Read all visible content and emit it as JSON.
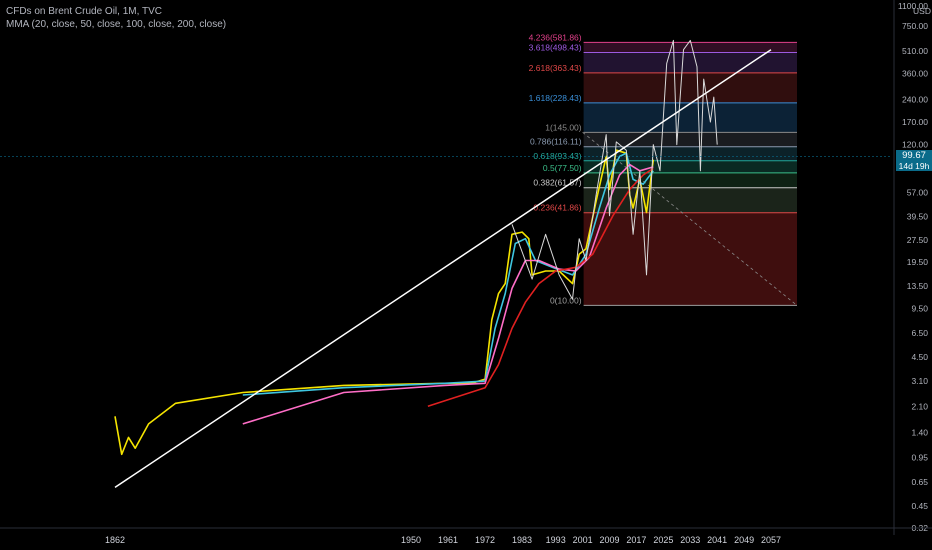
{
  "header": {
    "symbol_line": "CFDs on Brent Crude Oil, 1M, TVC",
    "indicator_line": "MMA (20, close, 50, close, 100, close, 200, close)"
  },
  "axis": {
    "currency": "USD",
    "y_ticks": [
      "1100.00",
      "750.00",
      "510.00",
      "360.00",
      "240.00",
      "170.00",
      "120.00",
      "57.00",
      "39.50",
      "27.50",
      "19.50",
      "13.50",
      "9.50",
      "6.50",
      "4.50",
      "3.10",
      "2.10",
      "1.40",
      "0.95",
      "0.65",
      "0.45",
      "0.32"
    ],
    "x_ticks": [
      "1862",
      "1950",
      "1961",
      "1972",
      "1983",
      "1993",
      "2001",
      "2009",
      "2017",
      "2025",
      "2033",
      "2041",
      "2049",
      "2057"
    ]
  },
  "last_price": {
    "value": "99.67",
    "countdown": "14d 19h",
    "color": "#0a6b8a"
  },
  "chart_data": {
    "type": "line",
    "title": "CFDs on Brent Crude Oil, 1M, TVC",
    "y_scale": "log",
    "ylim": [
      0.32,
      1100
    ],
    "x_ticks": [
      "1862",
      "1950",
      "1961",
      "1972",
      "1983",
      "1993",
      "2001",
      "2009",
      "2017",
      "2025",
      "2033",
      "2041",
      "2049",
      "2057"
    ],
    "fib_levels": [
      {
        "label": "0(10.00)",
        "ratio": 0,
        "price": 10.0,
        "line_color": "#9e9e9e",
        "fill": "#8b1f1f"
      },
      {
        "label": "0.236(41.86)",
        "ratio": 0.236,
        "price": 41.86,
        "line_color": "#e04848",
        "fill": "#3c4f3a"
      },
      {
        "label": "0.382(61.57)",
        "ratio": 0.382,
        "price": 61.57,
        "line_color": "#c8c8c8",
        "fill": "#1f4a2c"
      },
      {
        "label": "0.5(77.50)",
        "ratio": 0.5,
        "price": 77.5,
        "line_color": "#3bbf8a",
        "fill": "#175e4e"
      },
      {
        "label": "0.618(93.43)",
        "ratio": 0.618,
        "price": 93.43,
        "line_color": "#22a89a",
        "fill": "#1a4c5c"
      },
      {
        "label": "0.786(116.11)",
        "ratio": 0.786,
        "price": 116.11,
        "line_color": "#8a9ab0",
        "fill": "#3a3f48"
      },
      {
        "label": "1(145.00)",
        "ratio": 1,
        "price": 145.0,
        "line_color": "#8a8a8a",
        "fill": "#1a4c77"
      },
      {
        "label": "1.618(228.43)",
        "ratio": 1.618,
        "price": 228.43,
        "line_color": "#3a8fd8",
        "fill": "#6b2020"
      },
      {
        "label": "2.618(363.43)",
        "ratio": 2.618,
        "price": 363.43,
        "line_color": "#e04848",
        "fill": "#4a2a6b"
      },
      {
        "label": "3.618(498.43)",
        "ratio": 3.618,
        "price": 498.43,
        "line_color": "#9c5ae0",
        "fill": "#6b2050"
      },
      {
        "label": "4.236(581.86)",
        "ratio": 4.236,
        "price": 581.86,
        "line_color": "#e0408a",
        "fill": null
      }
    ],
    "series": [
      {
        "name": "MMA 20",
        "color": "#f5e400",
        "points": [
          [
            1862,
            1.8
          ],
          [
            1864,
            1.0
          ],
          [
            1866,
            1.3
          ],
          [
            1868,
            1.1
          ],
          [
            1872,
            1.6
          ],
          [
            1880,
            2.2
          ],
          [
            1900,
            2.6
          ],
          [
            1930,
            2.9
          ],
          [
            1960,
            3.0
          ],
          [
            1968,
            3.0
          ],
          [
            1972,
            3.2
          ],
          [
            1974,
            8.0
          ],
          [
            1976,
            12.0
          ],
          [
            1978,
            14.0
          ],
          [
            1980,
            30.0
          ],
          [
            1983,
            31.0
          ],
          [
            1985,
            28.0
          ],
          [
            1986,
            16.0
          ],
          [
            1990,
            17.0
          ],
          [
            1994,
            17.0
          ],
          [
            1998,
            14.0
          ],
          [
            2000,
            22.0
          ],
          [
            2002,
            24.0
          ],
          [
            2005,
            50.0
          ],
          [
            2008,
            100.0
          ],
          [
            2009,
            60.0
          ],
          [
            2011,
            110.0
          ],
          [
            2014,
            105.0
          ],
          [
            2015,
            55.0
          ],
          [
            2016,
            45.0
          ],
          [
            2018,
            70.0
          ],
          [
            2020,
            42.0
          ],
          [
            2022,
            95.0
          ]
        ]
      },
      {
        "name": "MMA 50",
        "color": "#3ec6e0",
        "points": [
          [
            1900,
            2.5
          ],
          [
            1930,
            2.8
          ],
          [
            1960,
            3.0
          ],
          [
            1972,
            3.1
          ],
          [
            1975,
            7.0
          ],
          [
            1978,
            12.0
          ],
          [
            1981,
            26.0
          ],
          [
            1984,
            28.0
          ],
          [
            1987,
            20.0
          ],
          [
            1992,
            18.0
          ],
          [
            1998,
            16.0
          ],
          [
            2002,
            22.0
          ],
          [
            2006,
            45.0
          ],
          [
            2009,
            75.0
          ],
          [
            2012,
            100.0
          ],
          [
            2014,
            105.0
          ],
          [
            2016,
            70.0
          ],
          [
            2019,
            65.0
          ],
          [
            2022,
            80.0
          ]
        ]
      },
      {
        "name": "MMA 100",
        "color": "#ff6ec7",
        "points": [
          [
            1900,
            1.6
          ],
          [
            1930,
            2.6
          ],
          [
            1960,
            2.9
          ],
          [
            1972,
            3.0
          ],
          [
            1976,
            6.0
          ],
          [
            1980,
            13.0
          ],
          [
            1984,
            20.0
          ],
          [
            1988,
            20.0
          ],
          [
            1994,
            17.5
          ],
          [
            1999,
            17.0
          ],
          [
            2003,
            21.0
          ],
          [
            2008,
            45.0
          ],
          [
            2012,
            75.0
          ],
          [
            2015,
            88.0
          ],
          [
            2018,
            80.0
          ],
          [
            2022,
            85.0
          ]
        ]
      },
      {
        "name": "MMA 200",
        "color": "#e02020",
        "points": [
          [
            1955,
            2.1
          ],
          [
            1972,
            2.8
          ],
          [
            1976,
            4.0
          ],
          [
            1980,
            7.0
          ],
          [
            1984,
            10.5
          ],
          [
            1988,
            14.0
          ],
          [
            1993,
            17.0
          ],
          [
            1999,
            18.0
          ],
          [
            2004,
            22.0
          ],
          [
            2010,
            40.0
          ],
          [
            2015,
            60.0
          ],
          [
            2019,
            75.0
          ],
          [
            2022,
            83.0
          ]
        ]
      },
      {
        "name": "price",
        "color": "#d9d9d9",
        "points": [
          [
            1980,
            35.0
          ],
          [
            1986,
            15.0
          ],
          [
            1990,
            30.0
          ],
          [
            1994,
            16.0
          ],
          [
            1998,
            11.0
          ],
          [
            2000,
            28.0
          ],
          [
            2002,
            20.0
          ],
          [
            2005,
            55.0
          ],
          [
            2008,
            140.0
          ],
          [
            2009,
            40.0
          ],
          [
            2011,
            125.0
          ],
          [
            2014,
            110.0
          ],
          [
            2016,
            30.0
          ],
          [
            2018,
            80.0
          ],
          [
            2020,
            16.0
          ],
          [
            2022,
            120.0
          ],
          [
            2024,
            80.0
          ],
          [
            2026,
            420.0
          ],
          [
            2028,
            600.0
          ],
          [
            2029,
            120.0
          ],
          [
            2031,
            520.0
          ],
          [
            2033,
            600.0
          ],
          [
            2035,
            400.0
          ],
          [
            2036,
            80.0
          ],
          [
            2037,
            330.0
          ],
          [
            2039,
            170.0
          ],
          [
            2040,
            250.0
          ],
          [
            2041,
            120.0
          ]
        ]
      }
    ],
    "trendline": {
      "color": "#ffffff",
      "from": [
        1862,
        0.6
      ],
      "to": [
        2057,
        520
      ]
    },
    "grid": false,
    "legend": "top-left"
  }
}
